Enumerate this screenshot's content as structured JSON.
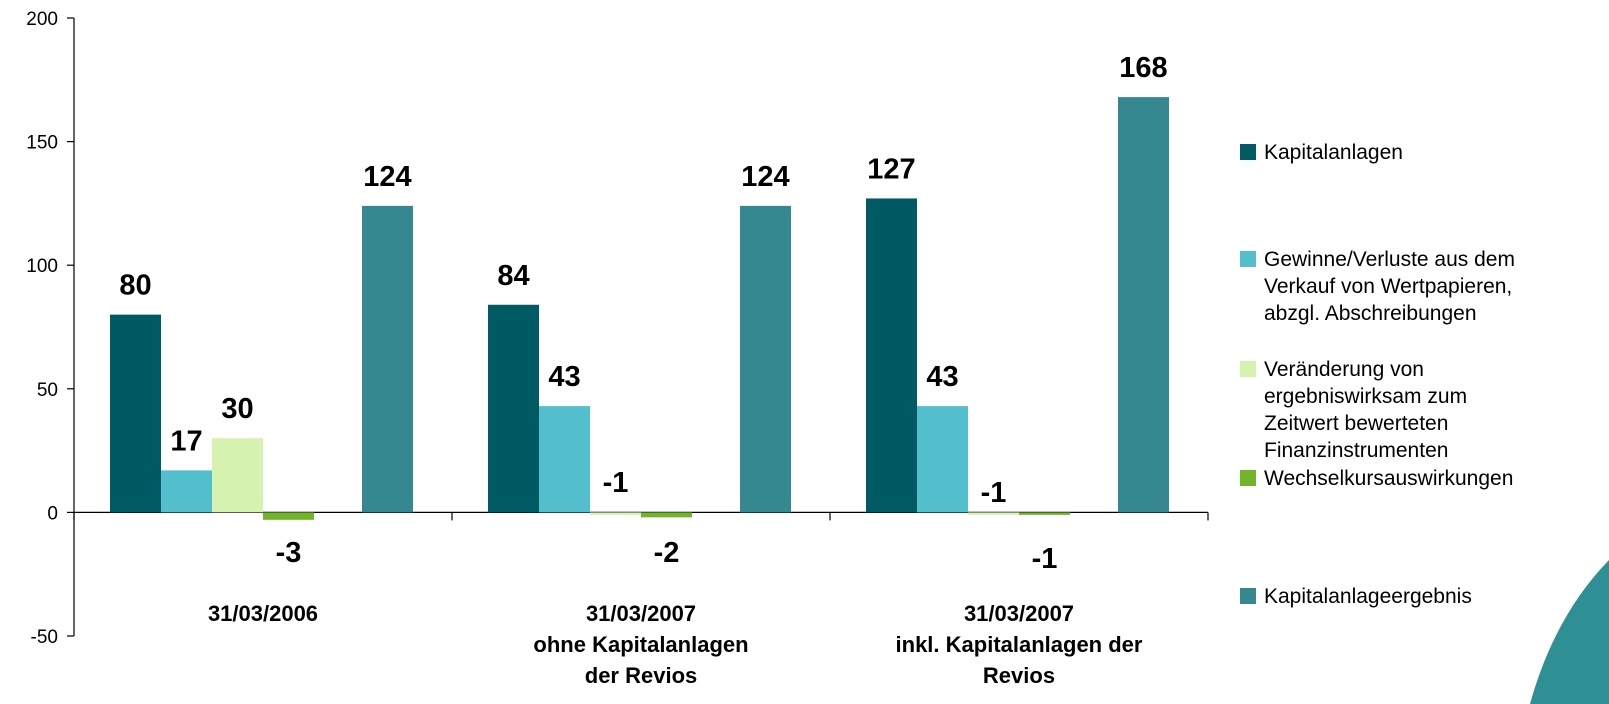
{
  "chart_data": {
    "type": "bar",
    "categories": [
      [
        "31/03/2006"
      ],
      [
        "31/03/2007",
        "ohne Kapitalanlagen",
        "der Revios"
      ],
      [
        "31/03/2007",
        "inkl. Kapitalanlagen der",
        "Revios"
      ]
    ],
    "series": [
      {
        "name": "Kapitalanlagen",
        "color": "#005a64",
        "values": [
          80,
          84,
          127
        ],
        "labels": [
          "80",
          "84",
          "127"
        ]
      },
      {
        "name": "Gewinne/Verluste aus dem Verkauf von Wertpapieren, abzgl. Abschreibungen",
        "legend_lines": [
          "Gewinne/Verluste aus dem",
          "Verkauf von Wertpapieren,",
          "abzgl. Abschreibungen"
        ],
        "color": "#53bfcc",
        "values": [
          17,
          43,
          43
        ],
        "labels": [
          "17",
          "43",
          "43"
        ]
      },
      {
        "name": "Veränderung von ergebniswirksam zum Zeitwert bewerteten Finanzinstrumenten",
        "legend_lines": [
          "Veränderung von",
          "ergebniswirksam zum",
          "Zeitwert bewerteten",
          "Finanzinstrumenten"
        ],
        "color": "#d5f2b1",
        "values": [
          30,
          -1,
          -1
        ],
        "labels": [
          "30",
          "-1",
          "-1"
        ]
      },
      {
        "name": "Wechselkursauswirkungen",
        "color": "#72b32a",
        "values": [
          -3,
          -2,
          -1
        ],
        "labels": [
          "-3",
          "-2",
          "-1"
        ]
      },
      {
        "name": "Kapitalanlageergebnis",
        "color": "#358890",
        "values": [
          124,
          124,
          168
        ],
        "labels": [
          "124",
          "124",
          "168"
        ]
      }
    ],
    "ylim": [
      -50,
      200
    ],
    "yticks": [
      "-50",
      "0",
      "50",
      "100",
      "150",
      "200"
    ],
    "ytick_values": [
      -50,
      0,
      50,
      100,
      150,
      200
    ],
    "legend_position": "right",
    "grid": false,
    "title": "",
    "xlabel": "",
    "ylabel": ""
  }
}
